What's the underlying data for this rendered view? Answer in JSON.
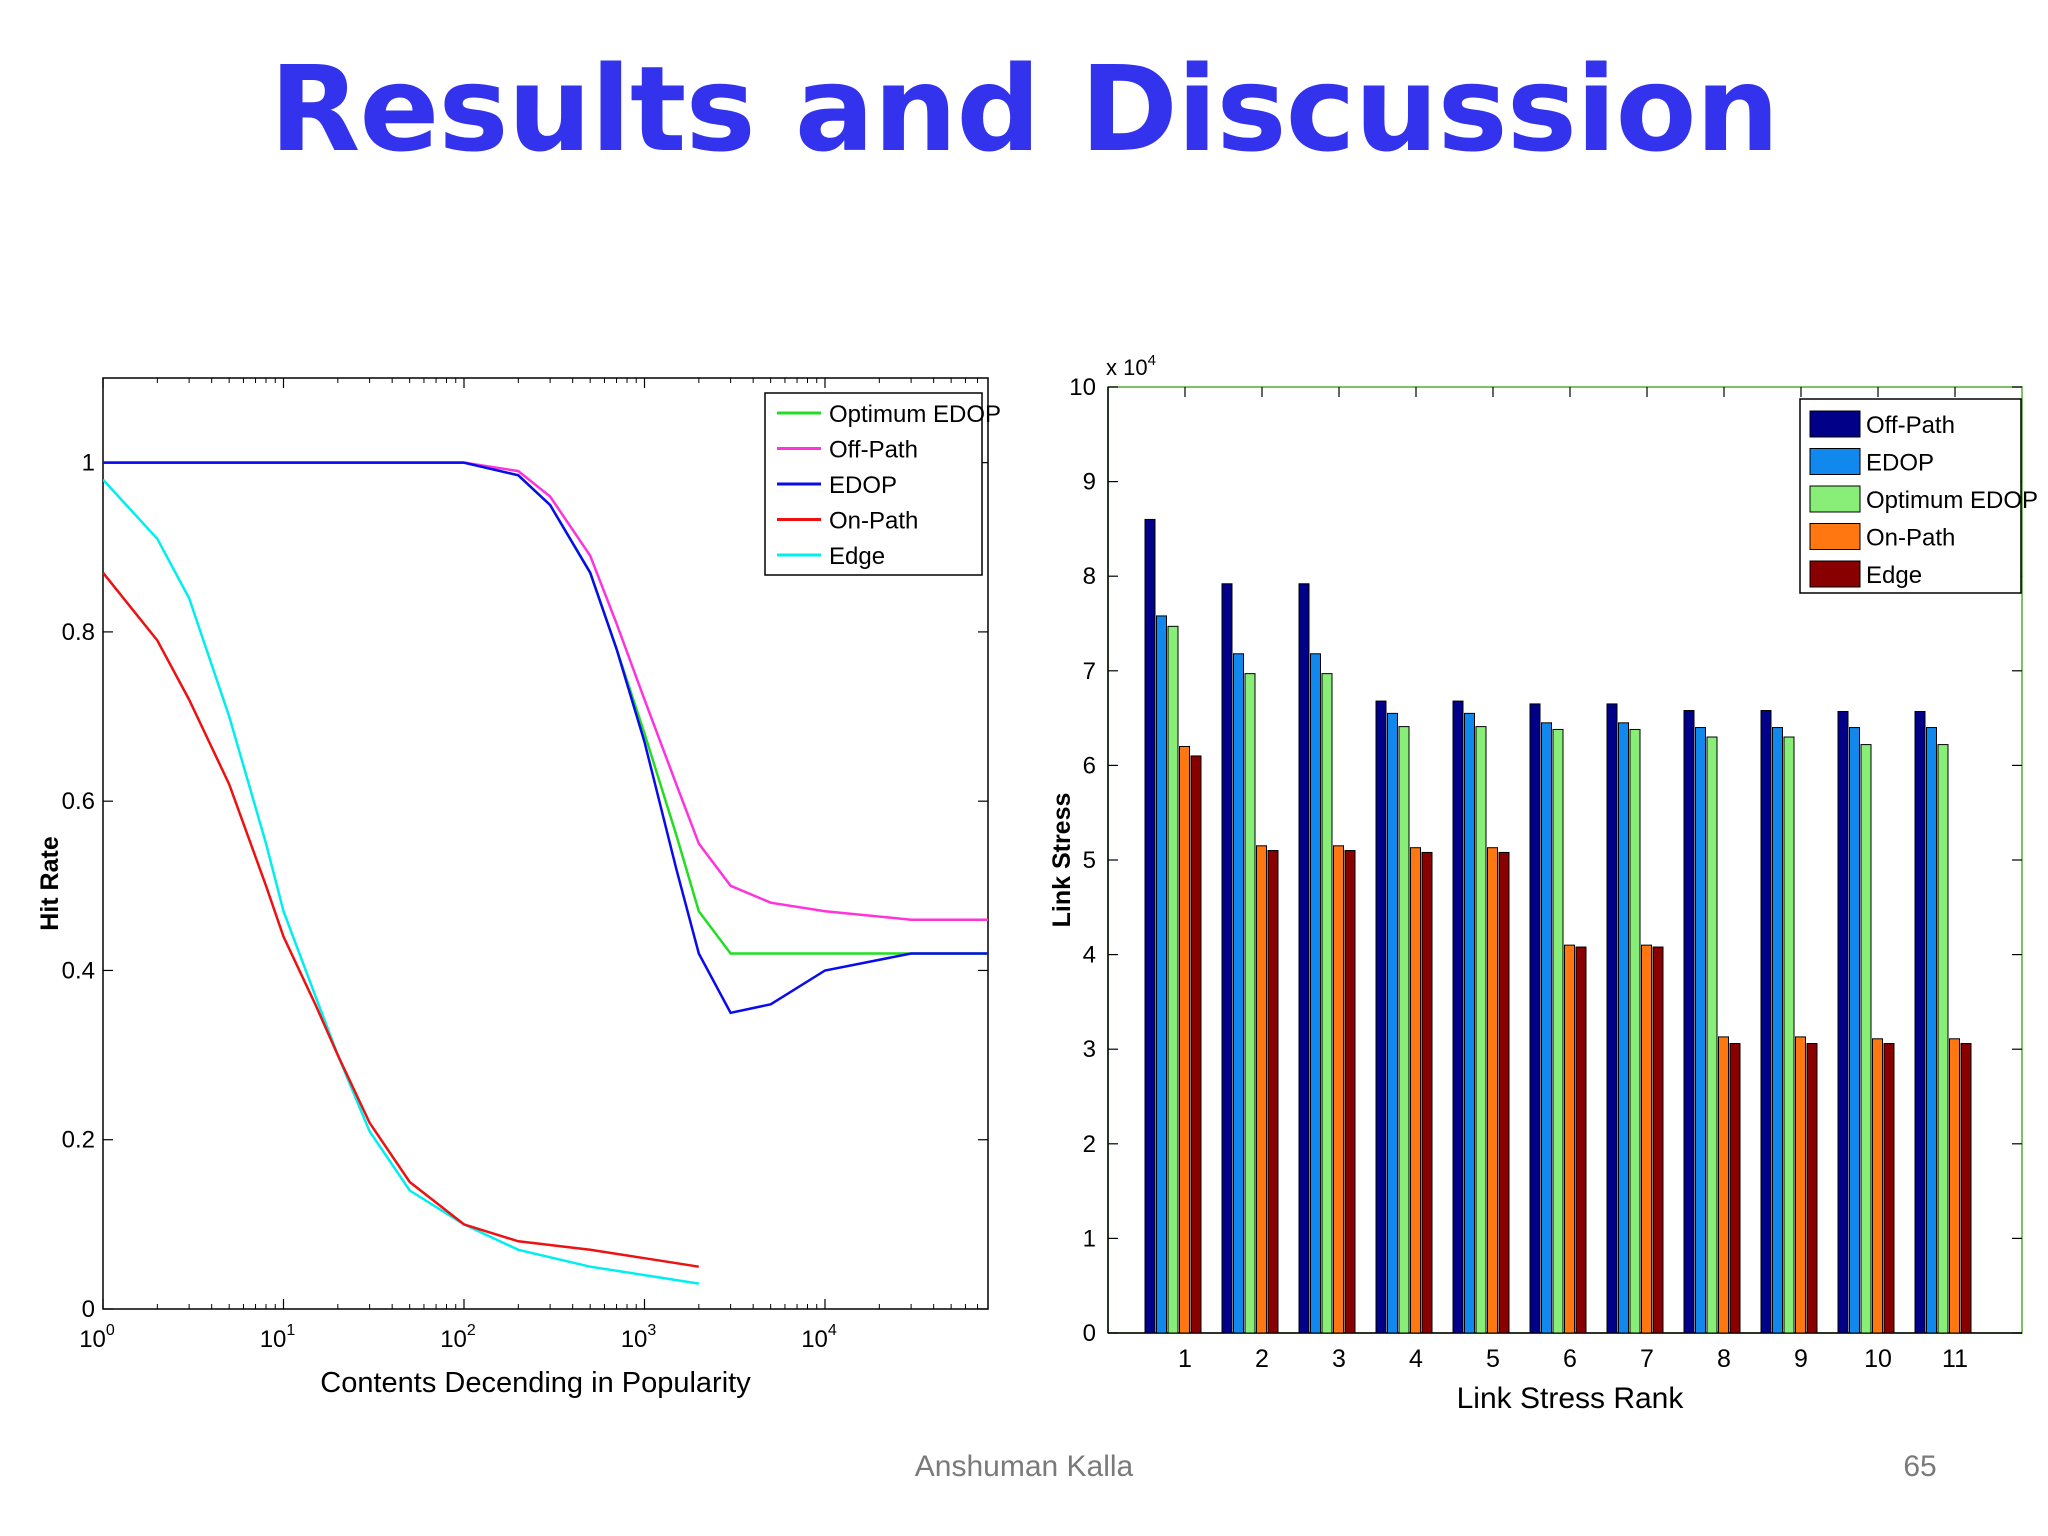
{
  "slide": {
    "title": "Results and Discussion",
    "footer_author": "Anshuman Kalla",
    "page_number": "65"
  },
  "chart_data": [
    {
      "type": "line",
      "xlabel": "Contents Decending in Popularity",
      "ylabel": "Hit Rate",
      "xscale": "log",
      "xlim": [
        1,
        80000
      ],
      "ylim": [
        0,
        1.1
      ],
      "xticks": [
        1,
        10,
        100,
        1000,
        10000
      ],
      "xtick_labels": [
        {
          "base": "10",
          "exp": "0"
        },
        {
          "base": "10",
          "exp": "1"
        },
        {
          "base": "10",
          "exp": "2"
        },
        {
          "base": "10",
          "exp": "3"
        },
        {
          "base": "10",
          "exp": "4"
        }
      ],
      "yticks": [
        0,
        0.2,
        0.4,
        0.6,
        0.8,
        1
      ],
      "ytick_labels": [
        "0",
        "0.2",
        "0.4",
        "0.6",
        "0.8",
        "1"
      ],
      "grid": false,
      "legend": "top-right",
      "series": [
        {
          "name": "Optimum EDOP",
          "color": "#22dd22",
          "x": [
            1,
            100,
            200,
            300,
            500,
            700,
            1000,
            1500,
            2000,
            3000,
            5000,
            10000,
            30000,
            80000
          ],
          "y": [
            1,
            1,
            0.985,
            0.95,
            0.87,
            0.78,
            0.68,
            0.56,
            0.47,
            0.42,
            0.42,
            0.42,
            0.42,
            0.42
          ]
        },
        {
          "name": "Off-Path",
          "color": "#ff33dd",
          "x": [
            1,
            100,
            200,
            300,
            500,
            700,
            1000,
            1500,
            2000,
            3000,
            5000,
            10000,
            30000,
            80000
          ],
          "y": [
            1,
            1,
            0.99,
            0.96,
            0.89,
            0.81,
            0.72,
            0.62,
            0.55,
            0.5,
            0.48,
            0.47,
            0.46,
            0.46
          ]
        },
        {
          "name": "EDOP",
          "color": "#0a0aee",
          "x": [
            1,
            100,
            200,
            300,
            500,
            700,
            1000,
            1500,
            2000,
            3000,
            5000,
            10000,
            30000,
            80000
          ],
          "y": [
            1,
            1,
            0.985,
            0.95,
            0.87,
            0.78,
            0.67,
            0.52,
            0.42,
            0.35,
            0.36,
            0.4,
            0.42,
            0.42
          ]
        },
        {
          "name": "On-Path",
          "color": "#ee1111",
          "x": [
            1,
            2,
            3,
            5,
            8,
            10,
            15,
            20,
            30,
            50,
            100,
            200,
            500,
            1000,
            2000
          ],
          "y": [
            0.87,
            0.79,
            0.72,
            0.62,
            0.5,
            0.44,
            0.36,
            0.3,
            0.22,
            0.15,
            0.1,
            0.08,
            0.07,
            0.06,
            0.05
          ]
        },
        {
          "name": "Edge",
          "color": "#00eeee",
          "x": [
            1,
            2,
            3,
            5,
            8,
            10,
            15,
            20,
            30,
            50,
            100,
            200,
            500,
            1000,
            2000
          ],
          "y": [
            0.98,
            0.91,
            0.84,
            0.7,
            0.55,
            0.47,
            0.37,
            0.3,
            0.21,
            0.14,
            0.1,
            0.07,
            0.05,
            0.04,
            0.03
          ]
        }
      ]
    },
    {
      "type": "bar",
      "xlabel": "Link Stress Rank",
      "ylabel": "Link Stress",
      "y_multiplier_base": "x 10",
      "y_multiplier_exp": "4",
      "ylim": [
        0,
        10
      ],
      "yticks": [
        0,
        1,
        2,
        3,
        4,
        5,
        6,
        7,
        8,
        9,
        10
      ],
      "ytick_labels": [
        "0",
        "1",
        "2",
        "3",
        "4",
        "5",
        "6",
        "7",
        "8",
        "9",
        "10"
      ],
      "categories": [
        "1",
        "2",
        "3",
        "4",
        "5",
        "6",
        "7",
        "8",
        "9",
        "10",
        "11"
      ],
      "grid": false,
      "legend": "top-right",
      "series": [
        {
          "name": "Off-Path",
          "color": "#000088",
          "values": [
            8.6,
            7.92,
            7.92,
            6.68,
            6.68,
            6.65,
            6.65,
            6.58,
            6.58,
            6.57,
            6.57
          ]
        },
        {
          "name": "EDOP",
          "color": "#1188ee",
          "values": [
            7.58,
            7.18,
            7.18,
            6.55,
            6.55,
            6.45,
            6.45,
            6.4,
            6.4,
            6.4,
            6.4
          ]
        },
        {
          "name": "Optimum EDOP",
          "color": "#88ee77",
          "values": [
            7.47,
            6.97,
            6.97,
            6.41,
            6.41,
            6.38,
            6.38,
            6.3,
            6.3,
            6.22,
            6.22
          ]
        },
        {
          "name": "On-Path",
          "color": "#ff7711",
          "values": [
            6.2,
            5.15,
            5.15,
            5.13,
            5.13,
            4.1,
            4.1,
            3.13,
            3.13,
            3.11,
            3.11
          ]
        },
        {
          "name": "Edge",
          "color": "#880000",
          "values": [
            6.1,
            5.1,
            5.1,
            5.08,
            5.08,
            4.08,
            4.08,
            3.06,
            3.06,
            3.06,
            3.06
          ]
        }
      ]
    }
  ]
}
